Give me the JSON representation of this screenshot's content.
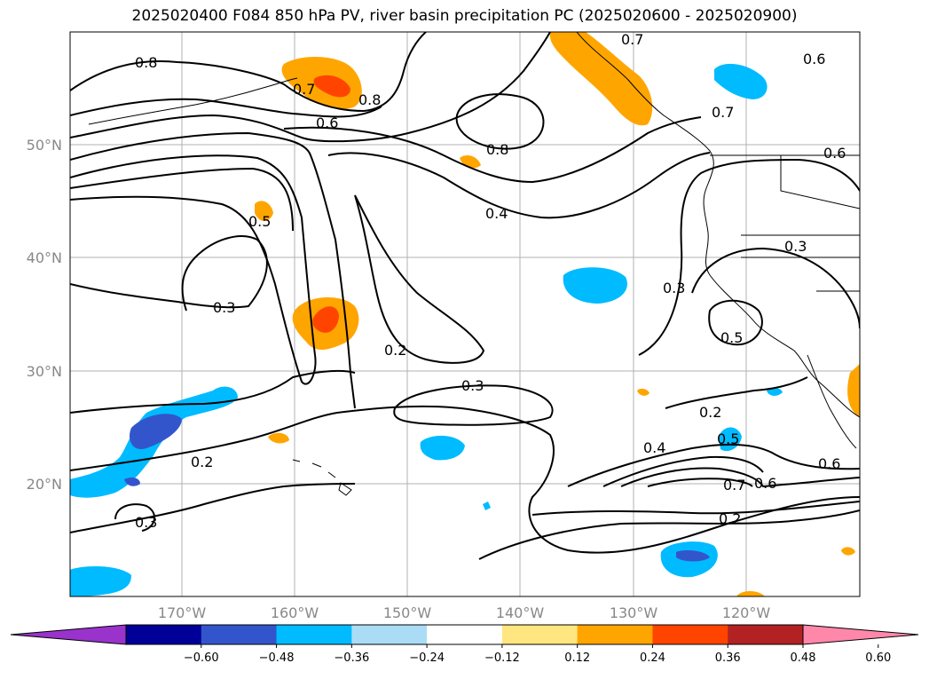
{
  "title": "2025020400 F084 850 hPa PV, river basin precipitation PC (2025020600 - 2025020900)",
  "lat_ticks": [
    "50°N",
    "40°N",
    "30°N",
    "20°N"
  ],
  "lon_ticks": [
    "170°W",
    "160°W",
    "150°W",
    "140°W",
    "130°W",
    "120°W"
  ],
  "colorbar": {
    "ticks": [
      "−0.60",
      "−0.48",
      "−0.36",
      "−0.24",
      "−0.12",
      "0.12",
      "0.24",
      "0.36",
      "0.48",
      "0.60"
    ],
    "colors": [
      "#9933cc",
      "#000099",
      "#3355cc",
      "#00bbff",
      "#aaddf5",
      "#ffffff",
      "#ffe680",
      "#ffa500",
      "#ff4400",
      "#b22222",
      "#ff88aa"
    ]
  },
  "contour_labels": [
    {
      "text": "0.8"
    },
    {
      "text": "0.7"
    },
    {
      "text": "0.6"
    },
    {
      "text": "0.8"
    },
    {
      "text": "0.8"
    },
    {
      "text": "0.7"
    },
    {
      "text": "0.6"
    },
    {
      "text": "0.7"
    },
    {
      "text": "0.6"
    },
    {
      "text": "0.4"
    },
    {
      "text": "0.5"
    },
    {
      "text": "0.3"
    },
    {
      "text": "0.3"
    },
    {
      "text": "0.3"
    },
    {
      "text": "0.2"
    },
    {
      "text": "0.3"
    },
    {
      "text": "0.5"
    },
    {
      "text": "0.2"
    },
    {
      "text": "0.4"
    },
    {
      "text": "0.5"
    },
    {
      "text": "0.2"
    },
    {
      "text": "0.3"
    },
    {
      "text": "0.7"
    },
    {
      "text": "0.6"
    },
    {
      "text": "0.2"
    },
    {
      "text": "0.6"
    }
  ]
}
